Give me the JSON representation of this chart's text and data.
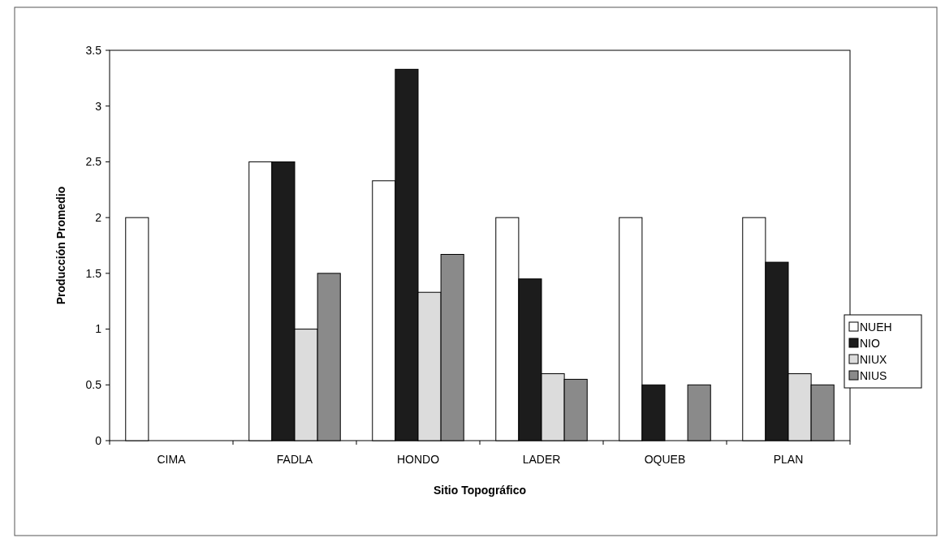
{
  "chart_data": {
    "type": "bar",
    "xlabel": "Sitio Topográfico",
    "ylabel": "Producción Promedio",
    "categories": [
      "CIMA",
      "FADLA",
      "HONDO",
      "LADER",
      "OQUEB",
      "PLAN"
    ],
    "series": [
      {
        "name": "NUEH",
        "color": "#ffffff",
        "values": [
          2.0,
          2.5,
          2.33,
          2.0,
          2.0,
          2.0
        ]
      },
      {
        "name": "NIO",
        "color": "#1c1c1c",
        "values": [
          null,
          2.5,
          3.33,
          1.45,
          0.5,
          1.6
        ]
      },
      {
        "name": "NIUX",
        "color": "#dcdcdc",
        "values": [
          null,
          1.0,
          1.33,
          0.6,
          null,
          0.6
        ]
      },
      {
        "name": "NIUS",
        "color": "#8a8a8a",
        "values": [
          null,
          1.5,
          1.67,
          0.55,
          0.5,
          0.5
        ]
      }
    ],
    "ylim": [
      0,
      3.5
    ],
    "yticks": [
      0,
      0.5,
      1,
      1.5,
      2,
      2.5,
      3,
      3.5
    ],
    "grid": false,
    "legend": "right"
  }
}
